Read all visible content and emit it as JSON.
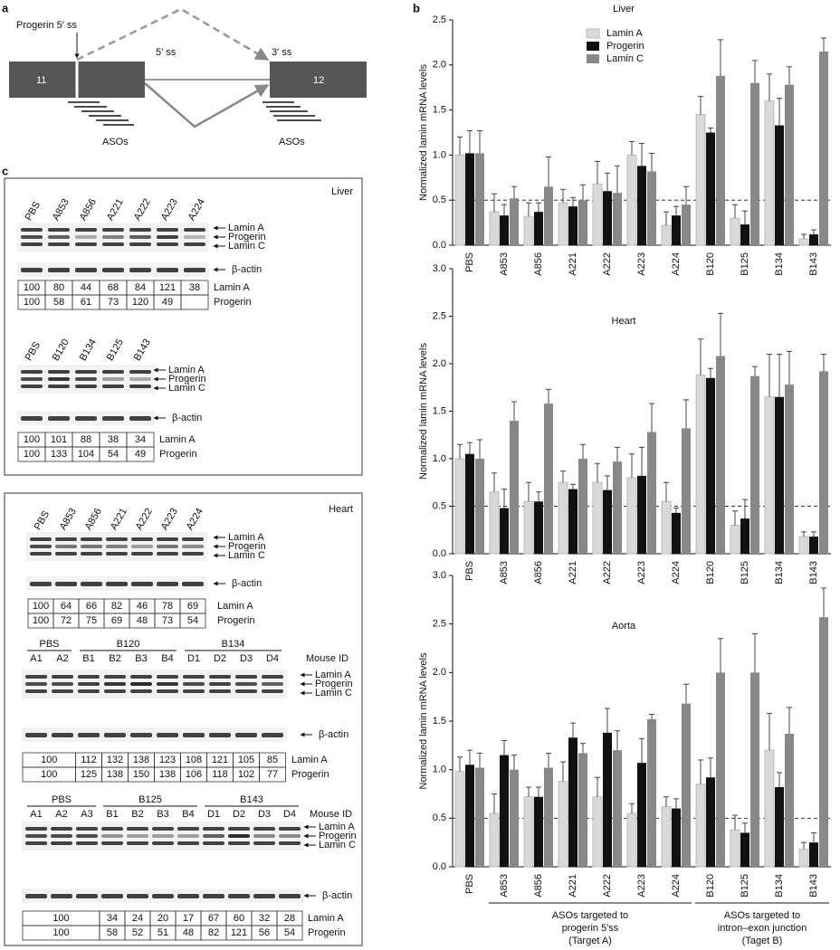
{
  "panel_a": {
    "label": "a",
    "exons": [
      "11",
      "12"
    ],
    "progerin_ss": "Progerin 5′ ss",
    "ss5": "5′ ss",
    "ss3": "3′ ss",
    "aso_labels": [
      "ASOs",
      "ASOs"
    ]
  },
  "panel_b": {
    "label": "b"
  },
  "chart_data": [
    {
      "type": "bar",
      "title": "Liver",
      "y_label": "Normalized lamin mRNA levels",
      "categories": [
        "PBS",
        "A853",
        "A856",
        "A221",
        "A222",
        "A223",
        "A224",
        "B120",
        "B125",
        "B134",
        "B143"
      ],
      "series": [
        {
          "name": "Lamin A",
          "color": "#d9d9d9",
          "values": [
            1.0,
            0.37,
            0.32,
            0.47,
            0.68,
            1.0,
            0.22,
            1.45,
            0.3,
            1.6,
            0.07
          ],
          "errors": [
            0.2,
            0.2,
            0.15,
            0.15,
            0.25,
            0.15,
            0.15,
            0.2,
            0.15,
            0.3,
            0.05
          ]
        },
        {
          "name": "Progerin",
          "color": "#111111",
          "values": [
            1.02,
            0.33,
            0.37,
            0.43,
            0.6,
            0.88,
            0.33,
            1.25,
            0.23,
            1.33,
            0.12
          ],
          "errors": [
            0.25,
            0.12,
            0.1,
            0.1,
            0.2,
            0.25,
            0.1,
            0.05,
            0.15,
            0.3,
            0.05
          ]
        },
        {
          "name": "Lamin C",
          "color": "#888888",
          "values": [
            1.02,
            0.52,
            0.65,
            0.5,
            0.58,
            0.82,
            0.45,
            1.88,
            1.8,
            1.78,
            2.15
          ],
          "errors": [
            0.25,
            0.13,
            0.33,
            0.17,
            0.3,
            0.2,
            0.2,
            0.4,
            0.25,
            0.2,
            0.15
          ]
        }
      ],
      "ylim": [
        0,
        2.5
      ],
      "yticks": [
        {
          "value": 0,
          "label": "0.0"
        },
        {
          "value": 0.5,
          "label": "0.5"
        },
        {
          "value": 1,
          "label": "1.0"
        },
        {
          "value": 1.5,
          "label": "1.5"
        },
        {
          "value": 2,
          "label": "2.0"
        },
        {
          "value": 2.5,
          "label": "2.5"
        }
      ],
      "reference_line": 0.5,
      "legend": "top"
    },
    {
      "type": "bar",
      "title": "Heart",
      "y_label": "Normalized lamin mRNA levels",
      "categories": [
        "PBS",
        "A853",
        "A856",
        "A221",
        "A222",
        "A223",
        "A224",
        "B120",
        "B125",
        "B134",
        "B143"
      ],
      "series": [
        {
          "name": "Lamin A",
          "color": "#d9d9d9",
          "values": [
            1.0,
            0.65,
            0.55,
            0.75,
            0.75,
            0.8,
            0.55,
            1.88,
            0.3,
            1.65,
            0.18
          ],
          "errors": [
            0.15,
            0.2,
            0.2,
            0.12,
            0.2,
            0.25,
            0.2,
            0.38,
            0.15,
            0.45,
            0.05
          ]
        },
        {
          "name": "Progerin",
          "color": "#111111",
          "values": [
            1.05,
            0.48,
            0.55,
            0.68,
            0.67,
            0.82,
            0.43,
            1.85,
            0.37,
            1.65,
            0.18
          ],
          "errors": [
            0.12,
            0.2,
            0.1,
            0.05,
            0.15,
            0.3,
            0.05,
            0.1,
            0.2,
            0.45,
            0.05
          ]
        },
        {
          "name": "Lamin C",
          "color": "#888888",
          "values": [
            1.0,
            1.4,
            1.58,
            1.0,
            0.97,
            1.28,
            1.32,
            2.08,
            1.87,
            1.78,
            1.92
          ],
          "errors": [
            0.2,
            0.2,
            0.15,
            0.15,
            0.15,
            0.3,
            0.3,
            0.45,
            0.1,
            0.35,
            0.18
          ]
        }
      ],
      "ylim": [
        0,
        3
      ],
      "yticks": [
        {
          "value": 0,
          "label": "0.0"
        },
        {
          "value": 0.5,
          "label": "0.5"
        },
        {
          "value": 1,
          "label": "1.0"
        },
        {
          "value": 1.5,
          "label": "1.5"
        },
        {
          "value": 2,
          "label": "2.0"
        },
        {
          "value": 2.5,
          "label": "2.5"
        },
        {
          "value": 3,
          "label": "3.0"
        }
      ],
      "reference_line": 0.5
    },
    {
      "type": "bar",
      "title": "Aorta",
      "y_label": "Normalized lamin mRNA levels",
      "categories": [
        "PBS",
        "A853",
        "A856",
        "A221",
        "A222",
        "A223",
        "A224",
        "B120",
        "B125",
        "B134",
        "B143"
      ],
      "series": [
        {
          "name": "Lamin A",
          "color": "#d9d9d9",
          "values": [
            0.98,
            0.55,
            0.72,
            0.88,
            0.72,
            0.55,
            0.62,
            0.85,
            0.38,
            1.2,
            0.18
          ],
          "errors": [
            0.15,
            0.2,
            0.1,
            0.2,
            0.2,
            0.1,
            0.1,
            0.25,
            0.15,
            0.38,
            0.07
          ]
        },
        {
          "name": "Progerin",
          "color": "#111111",
          "values": [
            1.05,
            1.15,
            0.72,
            1.33,
            1.38,
            1.07,
            0.6,
            0.92,
            0.35,
            0.82,
            0.25
          ],
          "errors": [
            0.15,
            0.15,
            0.1,
            0.15,
            0.25,
            0.25,
            0.1,
            0.2,
            0.1,
            0.15,
            0.1
          ]
        },
        {
          "name": "Lamin C",
          "color": "#888888",
          "values": [
            1.02,
            1.0,
            1.02,
            1.17,
            1.2,
            1.52,
            1.68,
            2.0,
            2.0,
            1.37,
            2.57
          ],
          "errors": [
            0.15,
            0.15,
            0.15,
            0.1,
            0.2,
            0.05,
            0.2,
            0.35,
            0.4,
            0.27,
            0.3
          ]
        }
      ],
      "ylim": [
        0,
        3
      ],
      "yticks": [
        {
          "value": 0,
          "label": "0.0"
        },
        {
          "value": 0.5,
          "label": "0.5"
        },
        {
          "value": 1,
          "label": "1.0"
        },
        {
          "value": 1.5,
          "label": "1.5"
        },
        {
          "value": 2,
          "label": "2.0"
        },
        {
          "value": 2.5,
          "label": "2.5"
        },
        {
          "value": 3,
          "label": "3.0"
        }
      ],
      "reference_line": 0.5,
      "annotations": [
        [
          "ASOs targeted to",
          "progerin 5′ss",
          "(Target A)"
        ],
        [
          "ASOs targeted to",
          "intron–exon junction",
          "(Taget B)"
        ]
      ]
    }
  ],
  "panel_c": {
    "label": "c",
    "liver": {
      "title": "Liver",
      "band_labels": [
        "Lamin A",
        "Progerin",
        "Lamin C",
        "β-actin"
      ],
      "blots": [
        {
          "lanes": [
            "PBS",
            "A853",
            "A856",
            "A221",
            "A222",
            "A223",
            "A224"
          ],
          "rows": [
            {
              "name": "Lamin A",
              "values": [
                100,
                80,
                44,
                68,
                84,
                121,
                38
              ]
            },
            {
              "name": "Progerin",
              "values": [
                100,
                58,
                61,
                73,
                120,
                49,
                null
              ]
            }
          ]
        },
        {
          "lanes": [
            "PBS",
            "B120",
            "B134",
            "B125",
            "B143"
          ],
          "rows": [
            {
              "name": "Lamin A",
              "values": [
                100,
                101,
                88,
                38,
                34
              ]
            },
            {
              "name": "Progerin",
              "values": [
                100,
                133,
                104,
                54,
                49
              ]
            }
          ]
        }
      ]
    },
    "heart": {
      "title": "Heart",
      "band_labels": [
        "Lamin A",
        "Progerin",
        "Lamin C",
        "β-actin"
      ],
      "id_label": "Mouse ID",
      "blots": [
        {
          "lanes": [
            "PBS",
            "A853",
            "A856",
            "A221",
            "A222",
            "A223",
            "A224"
          ],
          "rows": [
            {
              "name": "Lamin A",
              "values": [
                100,
                64,
                66,
                82,
                46,
                78,
                69
              ]
            },
            {
              "name": "Progerin",
              "values": [
                100,
                72,
                75,
                69,
                48,
                73,
                54
              ]
            }
          ]
        },
        {
          "groups": [
            {
              "name": "PBS",
              "lanes": [
                "A1",
                "A2"
              ]
            },
            {
              "name": "B120",
              "lanes": [
                "B1",
                "B2",
                "B3",
                "B4"
              ]
            },
            {
              "name": "B134",
              "lanes": [
                "D1",
                "D2",
                "D3",
                "D4"
              ]
            }
          ],
          "rows": [
            {
              "name": "Lamin A",
              "values": [
                100,
                112,
                132,
                138,
                123,
                108,
                121,
                105,
                85
              ]
            },
            {
              "name": "Progerin",
              "values": [
                100,
                125,
                138,
                150,
                138,
                106,
                118,
                102,
                77
              ]
            }
          ]
        },
        {
          "groups": [
            {
              "name": "PBS",
              "lanes": [
                "A1",
                "A2",
                "A3"
              ]
            },
            {
              "name": "B125",
              "lanes": [
                "B1",
                "B2",
                "B3",
                "B4"
              ]
            },
            {
              "name": "B143",
              "lanes": [
                "D1",
                "D2",
                "D3",
                "D4"
              ]
            }
          ],
          "rows": [
            {
              "name": "Lamin A",
              "values": [
                100,
                34,
                24,
                20,
                17,
                67,
                60,
                32,
                28
              ]
            },
            {
              "name": "Progerin",
              "values": [
                100,
                58,
                52,
                51,
                48,
                82,
                121,
                56,
                54
              ]
            }
          ]
        }
      ]
    }
  }
}
